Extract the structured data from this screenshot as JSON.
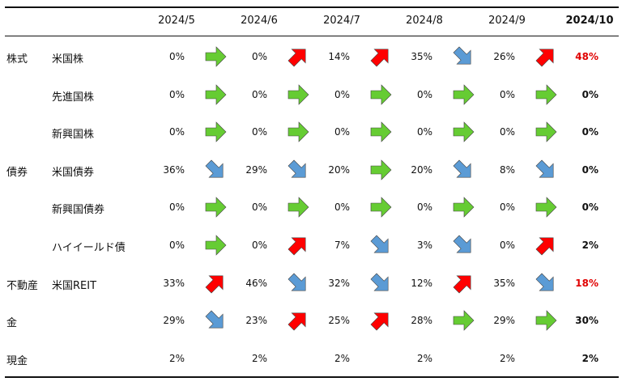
{
  "months": [
    "2024/5",
    "2024/6",
    "2024/7",
    "2024/8",
    "2024/9",
    "2024/10"
  ],
  "arrow_colors": {
    "up": "#ff0000",
    "flat": "#66cc33",
    "down": "#5b9bd5"
  },
  "highlight_color": "#e00000",
  "rows": [
    {
      "category": "株式",
      "name": "米国株",
      "values": [
        "0%",
        "0%",
        "14%",
        "35%",
        "26%",
        "48%"
      ],
      "arrows": [
        "flat",
        "up",
        "up",
        "down",
        "up"
      ],
      "latest_highlight": true
    },
    {
      "category": "",
      "name": "先進国株",
      "values": [
        "0%",
        "0%",
        "0%",
        "0%",
        "0%",
        "0%"
      ],
      "arrows": [
        "flat",
        "flat",
        "flat",
        "flat",
        "flat"
      ],
      "latest_highlight": false
    },
    {
      "category": "",
      "name": "新興国株",
      "values": [
        "0%",
        "0%",
        "0%",
        "0%",
        "0%",
        "0%"
      ],
      "arrows": [
        "flat",
        "flat",
        "flat",
        "flat",
        "flat"
      ],
      "latest_highlight": false
    },
    {
      "category": "債券",
      "name": "米国債券",
      "values": [
        "36%",
        "29%",
        "20%",
        "20%",
        "8%",
        "0%"
      ],
      "arrows": [
        "down",
        "down",
        "flat",
        "down",
        "down"
      ],
      "latest_highlight": false
    },
    {
      "category": "",
      "name": "新興国債券",
      "values": [
        "0%",
        "0%",
        "0%",
        "0%",
        "0%",
        "0%"
      ],
      "arrows": [
        "flat",
        "flat",
        "flat",
        "flat",
        "flat"
      ],
      "latest_highlight": false
    },
    {
      "category": "",
      "name": "ハイイールド債",
      "values": [
        "0%",
        "0%",
        "7%",
        "3%",
        "0%",
        "2%"
      ],
      "arrows": [
        "flat",
        "up",
        "down",
        "down",
        "up"
      ],
      "latest_highlight": false
    },
    {
      "category": "不動産",
      "name": "米国REIT",
      "values": [
        "33%",
        "46%",
        "32%",
        "12%",
        "35%",
        "18%"
      ],
      "arrows": [
        "up",
        "down",
        "down",
        "up",
        "down"
      ],
      "latest_highlight": true
    },
    {
      "category": "金",
      "name": "",
      "values": [
        "29%",
        "23%",
        "25%",
        "28%",
        "29%",
        "30%"
      ],
      "arrows": [
        "down",
        "up",
        "up",
        "flat",
        "flat"
      ],
      "latest_highlight": false
    },
    {
      "category": "現金",
      "name": "",
      "values": [
        "2%",
        "2%",
        "2%",
        "2%",
        "2%",
        "2%"
      ],
      "arrows": [],
      "latest_highlight": false
    }
  ]
}
